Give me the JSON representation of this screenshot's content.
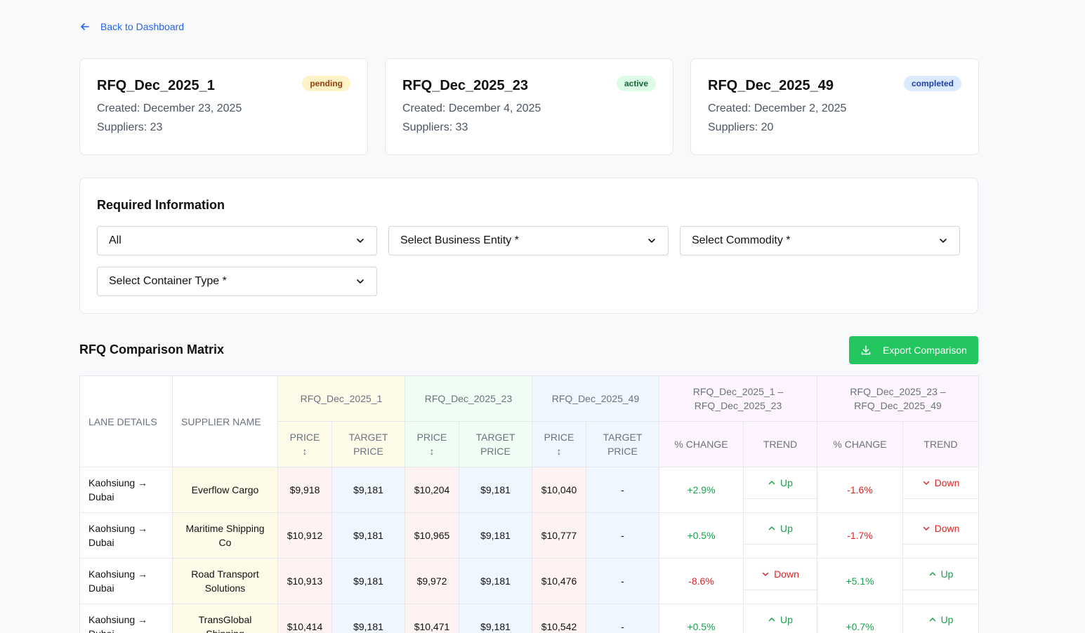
{
  "nav": {
    "back_label": "Back to Dashboard"
  },
  "cards": [
    {
      "title": "RFQ_Dec_2025_1",
      "status": "pending",
      "created": "Created: December 23, 2025",
      "suppliers": "Suppliers: 23"
    },
    {
      "title": "RFQ_Dec_2025_23",
      "status": "active",
      "created": "Created: December 4, 2025",
      "suppliers": "Suppliers: 33"
    },
    {
      "title": "RFQ_Dec_2025_49",
      "status": "completed",
      "created": "Created: December 2, 2025",
      "suppliers": "Suppliers: 20"
    }
  ],
  "required": {
    "title": "Required Information",
    "filters": [
      {
        "value": "All"
      },
      {
        "value": "Select Business Entity *"
      },
      {
        "value": "Select Commodity *"
      },
      {
        "value": "Select Container Type *"
      }
    ]
  },
  "matrix": {
    "title": "RFQ Comparison Matrix",
    "export_label": "Export Comparison",
    "headers": {
      "lane": "LANE DETAILS",
      "supplier": "SUPPLIER NAME",
      "rfq1": "RFQ_Dec_2025_1",
      "rfq2": "RFQ_Dec_2025_23",
      "rfq3": "RFQ_Dec_2025_49",
      "cmp1_line1": "RFQ_Dec_2025_1 –",
      "cmp1_line2": "RFQ_Dec_2025_23",
      "cmp2_line1": "RFQ_Dec_2025_23 –",
      "cmp2_line2": "RFQ_Dec_2025_49",
      "price": "PRICE",
      "sort": "↕",
      "target_line1": "TARGET",
      "target_line2": "PRICE",
      "change": "% CHANGE",
      "trend": "TREND"
    },
    "rows": [
      {
        "lane_line1": "Kaohsiung →",
        "lane_line2": "Dubai",
        "supplier_line1": "Everflow Cargo",
        "supplier_line2": "",
        "p1": "$9,918",
        "t1": "$9,181",
        "p2": "$10,204",
        "t2": "$9,181",
        "p3": "$10,040",
        "t3": "-",
        "c1": "+2.9%",
        "tr1": "Up",
        "c2": "-1.6%",
        "tr2": "Down"
      },
      {
        "lane_line1": "Kaohsiung →",
        "lane_line2": "Dubai",
        "supplier_line1": "Maritime Shipping",
        "supplier_line2": "Co",
        "p1": "$10,912",
        "t1": "$9,181",
        "p2": "$10,965",
        "t2": "$9,181",
        "p3": "$10,777",
        "t3": "-",
        "c1": "+0.5%",
        "tr1": "Up",
        "c2": "-1.7%",
        "tr2": "Down"
      },
      {
        "lane_line1": "Kaohsiung →",
        "lane_line2": "Dubai",
        "supplier_line1": "Road Transport",
        "supplier_line2": "Solutions",
        "p1": "$10,913",
        "t1": "$9,181",
        "p2": "$9,972",
        "t2": "$9,181",
        "p3": "$10,476",
        "t3": "-",
        "c1": "-8.6%",
        "tr1": "Down",
        "c2": "+5.1%",
        "tr2": "Up"
      },
      {
        "lane_line1": "Kaohsiung →",
        "lane_line2": "Dubai",
        "supplier_line1": "TransGlobal",
        "supplier_line2": "Shipping",
        "p1": "$10,414",
        "t1": "$9,181",
        "p2": "$10,471",
        "t2": "$9,181",
        "p3": "$10,542",
        "t3": "-",
        "c1": "+0.5%",
        "tr1": "Up",
        "c2": "+0.7%",
        "tr2": "Up"
      }
    ]
  },
  "colors": {
    "accent": "#2563eb",
    "export_button": "#22c55e",
    "positive": "#16a34a",
    "negative": "#dc2626"
  },
  "icons": {
    "back": "arrow-left-icon",
    "dropdown": "chevron-down-icon",
    "export": "download-icon",
    "trend_up": "chevron-up-icon",
    "trend_down": "chevron-down-icon"
  }
}
